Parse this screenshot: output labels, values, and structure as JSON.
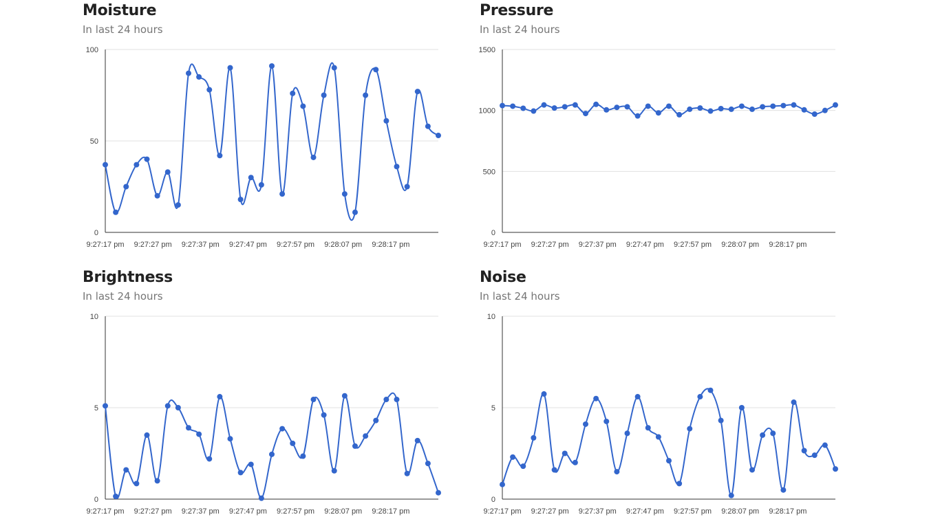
{
  "colors": {
    "series": "#3366cc",
    "grid": "#e0e0e0",
    "axis": "#333333",
    "title": "#222222",
    "subtitle": "#757575"
  },
  "chart_data": [
    {
      "type": "line",
      "title": "Moisture",
      "subtitle": "In last 24 hours",
      "ylim": [
        0,
        100
      ],
      "yticks": [
        0,
        50,
        100
      ],
      "xlim": [
        0,
        35
      ],
      "xticks": [
        {
          "x": 0,
          "label": "9:27:17 pm"
        },
        {
          "x": 5,
          "label": "9:27:27 pm"
        },
        {
          "x": 10,
          "label": "9:27:37 pm"
        },
        {
          "x": 15,
          "label": "9:27:47 pm"
        },
        {
          "x": 20,
          "label": "9:27:57 pm"
        },
        {
          "x": 25,
          "label": "9:28:07 pm"
        },
        {
          "x": 30,
          "label": "9:28:17 pm"
        }
      ],
      "grid": true,
      "series": [
        {
          "values": [
            37,
            11,
            25,
            37,
            40,
            20,
            33,
            15,
            87,
            85,
            78,
            42,
            90,
            18,
            30,
            26,
            91,
            21,
            76,
            69,
            41,
            75,
            90,
            21,
            11,
            75,
            89,
            61,
            36,
            25,
            77,
            58,
            53
          ]
        }
      ]
    },
    {
      "type": "line",
      "title": "Pressure",
      "subtitle": "In last 24 hours",
      "ylim": [
        0,
        1500
      ],
      "yticks": [
        0,
        500,
        1000,
        1500
      ],
      "xlim": [
        0,
        35
      ],
      "xticks": [
        {
          "x": 0,
          "label": "9:27:17 pm"
        },
        {
          "x": 5,
          "label": "9:27:27 pm"
        },
        {
          "x": 10,
          "label": "9:27:37 pm"
        },
        {
          "x": 15,
          "label": "9:27:47 pm"
        },
        {
          "x": 20,
          "label": "9:27:57 pm"
        },
        {
          "x": 25,
          "label": "9:28:07 pm"
        },
        {
          "x": 30,
          "label": "9:28:17 pm"
        }
      ],
      "grid": true,
      "series": [
        {
          "values": [
            1040,
            1035,
            1018,
            995,
            1045,
            1020,
            1030,
            1045,
            975,
            1050,
            1005,
            1025,
            1030,
            955,
            1035,
            980,
            1035,
            965,
            1010,
            1020,
            995,
            1015,
            1010,
            1035,
            1010,
            1030,
            1035,
            1040,
            1045,
            1005,
            970,
            1000,
            1045
          ]
        }
      ]
    },
    {
      "type": "line",
      "title": "Brightness",
      "subtitle": "In last 24 hours",
      "ylim": [
        0,
        10
      ],
      "yticks": [
        0,
        5,
        10
      ],
      "xlim": [
        0,
        35
      ],
      "xticks": [
        {
          "x": 0,
          "label": "9:27:17 pm"
        },
        {
          "x": 5,
          "label": "9:27:27 pm"
        },
        {
          "x": 10,
          "label": "9:27:37 pm"
        },
        {
          "x": 15,
          "label": "9:27:47 pm"
        },
        {
          "x": 20,
          "label": "9:27:57 pm"
        },
        {
          "x": 25,
          "label": "9:28:07 pm"
        },
        {
          "x": 30,
          "label": "9:28:17 pm"
        }
      ],
      "grid": true,
      "series": [
        {
          "values": [
            5.1,
            0.15,
            1.6,
            0.85,
            3.5,
            1.0,
            5.1,
            5.0,
            3.9,
            3.55,
            2.2,
            5.6,
            3.3,
            1.45,
            1.9,
            0.05,
            2.45,
            3.85,
            3.05,
            2.35,
            5.45,
            4.6,
            1.55,
            5.65,
            2.9,
            3.45,
            4.3,
            5.45,
            5.45,
            1.4,
            3.2,
            1.95,
            0.35
          ]
        }
      ]
    },
    {
      "type": "line",
      "title": "Noise",
      "subtitle": "In last 24 hours",
      "ylim": [
        0,
        10
      ],
      "yticks": [
        0,
        5,
        10
      ],
      "xlim": [
        0,
        35
      ],
      "xticks": [
        {
          "x": 0,
          "label": "9:27:17 pm"
        },
        {
          "x": 5,
          "label": "9:27:27 pm"
        },
        {
          "x": 10,
          "label": "9:27:37 pm"
        },
        {
          "x": 15,
          "label": "9:27:47 pm"
        },
        {
          "x": 20,
          "label": "9:27:57 pm"
        },
        {
          "x": 25,
          "label": "9:28:07 pm"
        },
        {
          "x": 30,
          "label": "9:28:17 pm"
        }
      ],
      "grid": true,
      "series": [
        {
          "values": [
            0.8,
            2.3,
            1.8,
            3.35,
            5.75,
            1.6,
            2.5,
            2.0,
            4.1,
            5.5,
            4.25,
            1.5,
            3.6,
            5.6,
            3.9,
            3.4,
            2.1,
            0.85,
            3.85,
            5.6,
            5.95,
            4.3,
            0.2,
            5.0,
            1.6,
            3.5,
            3.6,
            0.5,
            5.3,
            2.65,
            2.4,
            2.95,
            1.65
          ]
        }
      ]
    }
  ]
}
